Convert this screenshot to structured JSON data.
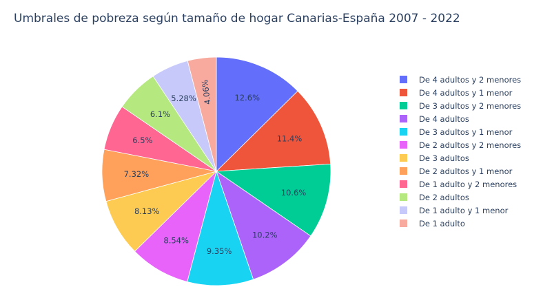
{
  "chart_data": {
    "type": "pie",
    "title": "Umbrales de pobreza según tamaño de hogar Canarias-España 2007 - 2022",
    "legend_position": "right",
    "slices": [
      {
        "label": "De 4 adultos y 2 menores",
        "value": 12.6,
        "text": "12.6%",
        "color": "#636efa"
      },
      {
        "label": "De 4 adultos y 1 menor",
        "value": 11.4,
        "text": "11.4%",
        "color": "#ef553b"
      },
      {
        "label": "De 3 adultos y 2 menores",
        "value": 10.6,
        "text": "10.6%",
        "color": "#00cc96"
      },
      {
        "label": "De 4 adultos",
        "value": 10.2,
        "text": "10.2%",
        "color": "#ab63fa"
      },
      {
        "label": "De 3 adultos y 1 menor",
        "value": 9.35,
        "text": "9.35%",
        "color": "#19d3f3"
      },
      {
        "label": "De 2 adultos y 2 menores",
        "value": 8.54,
        "text": "8.54%",
        "color": "#e763fa"
      },
      {
        "label": "De 3 adultos",
        "value": 8.13,
        "text": "8.13%",
        "color": "#fecb52"
      },
      {
        "label": "De 2 adultos y 1 menor",
        "value": 7.32,
        "text": "7.32%",
        "color": "#ffa15a"
      },
      {
        "label": "De 1 adulto y 2 menores",
        "value": 6.5,
        "text": "6.5%",
        "color": "#ff6692"
      },
      {
        "label": "De 2 adultos",
        "value": 6.1,
        "text": "6.1%",
        "color": "#b6e880"
      },
      {
        "label": "De 1 adulto y 1 menor",
        "value": 5.28,
        "text": "5.28%",
        "color": "#c6c9f9"
      },
      {
        "label": "De 1 adulto",
        "value": 4.06,
        "text": "4.06%",
        "color": "#f8aa9f"
      }
    ]
  }
}
